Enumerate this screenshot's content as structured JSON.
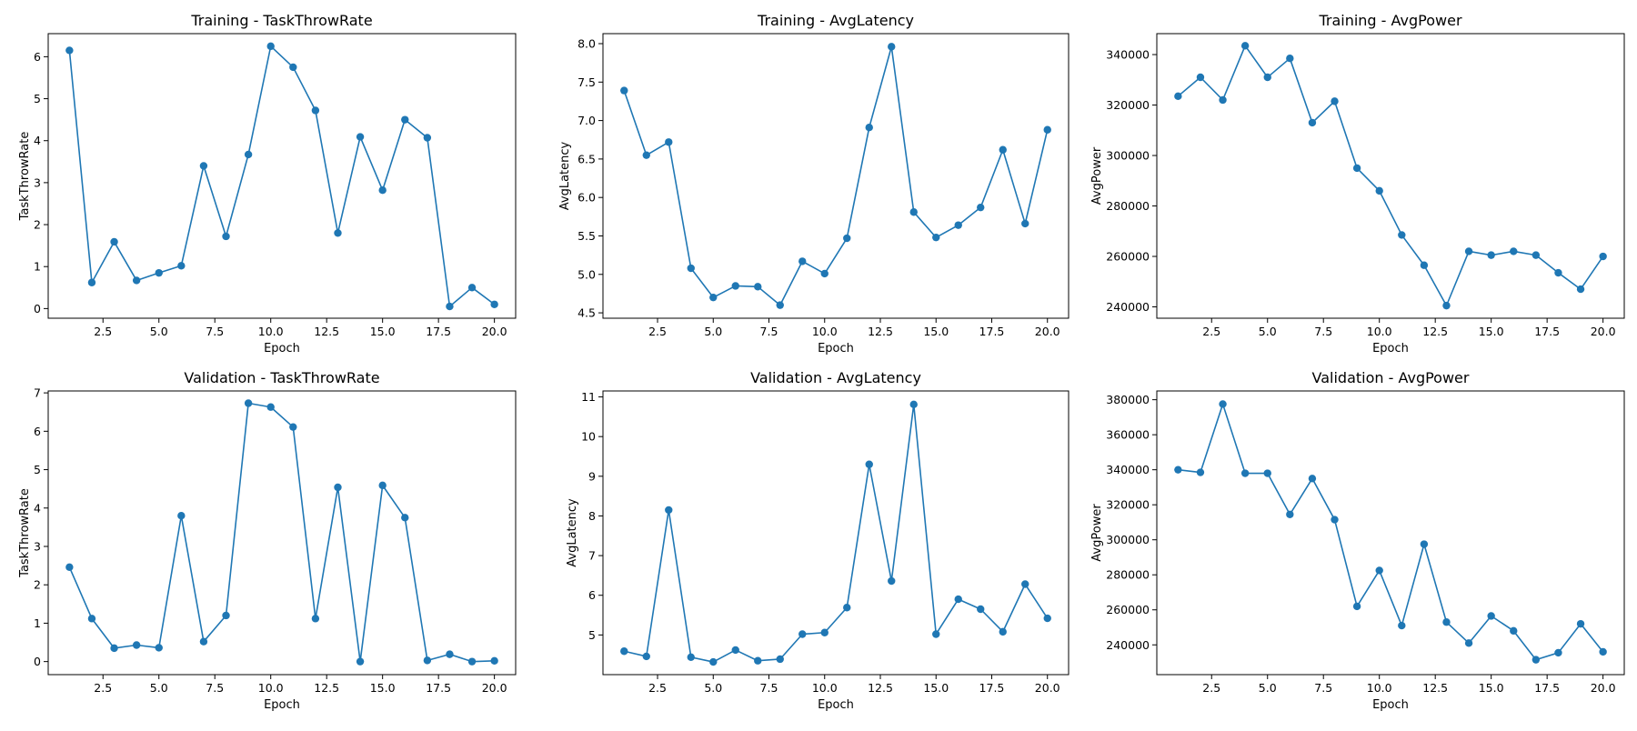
{
  "chart_data": [
    {
      "type": "line",
      "title": "Training - TaskThrowRate",
      "xlabel": "Epoch",
      "ylabel": "TaskThrowRate",
      "xlim": [
        0.05,
        20.95
      ],
      "ylim": [
        -0.23,
        6.55
      ],
      "xticks": [
        2.5,
        5.0,
        7.5,
        10.0,
        12.5,
        15.0,
        17.5,
        20.0
      ],
      "xtick_labels": [
        "2.5",
        "5.0",
        "7.5",
        "10.0",
        "12.5",
        "15.0",
        "17.5",
        "20.0"
      ],
      "yticks": [
        0,
        1,
        2,
        3,
        4,
        5,
        6
      ],
      "ytick_labels": [
        "0",
        "1",
        "2",
        "3",
        "4",
        "5",
        "6"
      ],
      "color": "#1f77b4",
      "grid": false,
      "x": [
        1,
        2,
        3,
        4,
        5,
        6,
        7,
        8,
        9,
        10,
        11,
        12,
        13,
        14,
        15,
        16,
        17,
        18,
        19,
        20
      ],
      "y": [
        6.15,
        0.62,
        1.59,
        0.67,
        0.85,
        1.02,
        3.4,
        1.72,
        3.67,
        6.25,
        5.75,
        4.72,
        1.8,
        4.09,
        2.82,
        4.5,
        4.07,
        0.05,
        0.5,
        0.1
      ]
    },
    {
      "type": "line",
      "title": "Training - AvgLatency",
      "xlabel": "Epoch",
      "ylabel": "AvgLatency",
      "xlim": [
        0.05,
        20.95
      ],
      "ylim": [
        4.43,
        8.13
      ],
      "xticks": [
        2.5,
        5.0,
        7.5,
        10.0,
        12.5,
        15.0,
        17.5,
        20.0
      ],
      "xtick_labels": [
        "2.5",
        "5.0",
        "7.5",
        "10.0",
        "12.5",
        "15.0",
        "17.5",
        "20.0"
      ],
      "yticks": [
        4.5,
        5.0,
        5.5,
        6.0,
        6.5,
        7.0,
        7.5,
        8.0
      ],
      "ytick_labels": [
        "4.5",
        "5.0",
        "5.5",
        "6.0",
        "6.5",
        "7.0",
        "7.5",
        "8.0"
      ],
      "color": "#1f77b4",
      "grid": false,
      "x": [
        1,
        2,
        3,
        4,
        5,
        6,
        7,
        8,
        9,
        10,
        11,
        12,
        13,
        14,
        15,
        16,
        17,
        18,
        19,
        20
      ],
      "y": [
        7.39,
        6.55,
        6.72,
        5.08,
        4.7,
        4.85,
        4.84,
        4.6,
        5.17,
        5.01,
        5.47,
        6.91,
        7.96,
        5.81,
        5.48,
        5.64,
        5.87,
        6.62,
        5.66,
        6.88
      ]
    },
    {
      "type": "line",
      "title": "Training - AvgPower",
      "xlabel": "Epoch",
      "ylabel": "AvgPower",
      "xlim": [
        0.05,
        20.95
      ],
      "ylim": [
        235500,
        348300
      ],
      "xticks": [
        2.5,
        5.0,
        7.5,
        10.0,
        12.5,
        15.0,
        17.5,
        20.0
      ],
      "xtick_labels": [
        "2.5",
        "5.0",
        "7.5",
        "10.0",
        "12.5",
        "15.0",
        "17.5",
        "20.0"
      ],
      "yticks": [
        240000,
        260000,
        280000,
        300000,
        320000,
        340000
      ],
      "ytick_labels": [
        "240000",
        "260000",
        "280000",
        "300000",
        "320000",
        "340000"
      ],
      "color": "#1f77b4",
      "grid": false,
      "x": [
        1,
        2,
        3,
        4,
        5,
        6,
        7,
        8,
        9,
        10,
        11,
        12,
        13,
        14,
        15,
        16,
        17,
        18,
        19,
        20
      ],
      "y": [
        323500,
        331000,
        322000,
        343500,
        331000,
        338500,
        313000,
        321500,
        295000,
        286000,
        268500,
        256500,
        240500,
        262000,
        260500,
        262000,
        260500,
        253500,
        247000,
        260000
      ]
    },
    {
      "type": "line",
      "title": "Validation - TaskThrowRate",
      "xlabel": "Epoch",
      "ylabel": "TaskThrowRate",
      "xlim": [
        0.05,
        20.95
      ],
      "ylim": [
        -0.34,
        7.05
      ],
      "xticks": [
        2.5,
        5.0,
        7.5,
        10.0,
        12.5,
        15.0,
        17.5,
        20.0
      ],
      "xtick_labels": [
        "2.5",
        "5.0",
        "7.5",
        "10.0",
        "12.5",
        "15.0",
        "17.5",
        "20.0"
      ],
      "yticks": [
        0,
        1,
        2,
        3,
        4,
        5,
        6,
        7
      ],
      "ytick_labels": [
        "0",
        "1",
        "2",
        "3",
        "4",
        "5",
        "6",
        "7"
      ],
      "color": "#1f77b4",
      "grid": false,
      "x": [
        1,
        2,
        3,
        4,
        5,
        6,
        7,
        8,
        9,
        10,
        11,
        12,
        13,
        14,
        15,
        16,
        17,
        18,
        19,
        20
      ],
      "y": [
        2.46,
        1.12,
        0.35,
        0.43,
        0.36,
        3.8,
        0.52,
        1.2,
        6.73,
        6.63,
        6.11,
        1.12,
        4.54,
        0.0,
        4.59,
        3.75,
        0.03,
        0.19,
        0.0,
        0.02
      ]
    },
    {
      "type": "line",
      "title": "Validation - AvgLatency",
      "xlabel": "Epoch",
      "ylabel": "AvgLatency",
      "xlim": [
        0.05,
        20.95
      ],
      "ylim": [
        4.0,
        11.15
      ],
      "xticks": [
        2.5,
        5.0,
        7.5,
        10.0,
        12.5,
        15.0,
        17.5,
        20.0
      ],
      "xtick_labels": [
        "2.5",
        "5.0",
        "7.5",
        "10.0",
        "12.5",
        "15.0",
        "17.5",
        "20.0"
      ],
      "yticks": [
        5,
        6,
        7,
        8,
        9,
        10,
        11
      ],
      "ytick_labels": [
        "5",
        "6",
        "7",
        "8",
        "9",
        "10",
        "11"
      ],
      "color": "#1f77b4",
      "grid": false,
      "x": [
        1,
        2,
        3,
        4,
        5,
        6,
        7,
        8,
        9,
        10,
        11,
        12,
        13,
        14,
        15,
        16,
        17,
        18,
        19,
        20
      ],
      "y": [
        4.59,
        4.46,
        8.15,
        4.44,
        4.32,
        4.62,
        4.35,
        4.39,
        5.02,
        5.06,
        5.69,
        9.3,
        6.36,
        10.81,
        5.02,
        5.9,
        5.65,
        5.08,
        6.28,
        5.42
      ]
    },
    {
      "type": "line",
      "title": "Validation - AvgPower",
      "xlabel": "Epoch",
      "ylabel": "AvgPower",
      "xlim": [
        0.05,
        20.95
      ],
      "ylim": [
        223000,
        385000
      ],
      "xticks": [
        2.5,
        5.0,
        7.5,
        10.0,
        12.5,
        15.0,
        17.5,
        20.0
      ],
      "xtick_labels": [
        "2.5",
        "5.0",
        "7.5",
        "10.0",
        "12.5",
        "15.0",
        "17.5",
        "20.0"
      ],
      "yticks": [
        240000,
        260000,
        280000,
        300000,
        320000,
        340000,
        360000,
        380000
      ],
      "ytick_labels": [
        "240000",
        "260000",
        "280000",
        "300000",
        "320000",
        "340000",
        "360000",
        "380000"
      ],
      "color": "#1f77b4",
      "grid": false,
      "x": [
        1,
        2,
        3,
        4,
        5,
        6,
        7,
        8,
        9,
        10,
        11,
        12,
        13,
        14,
        15,
        16,
        17,
        18,
        19,
        20
      ],
      "y": [
        340000,
        338500,
        377500,
        338000,
        338000,
        314500,
        335000,
        311500,
        262000,
        282500,
        251000,
        297500,
        253000,
        241000,
        256500,
        248000,
        231500,
        235500,
        252000,
        236000
      ]
    }
  ]
}
